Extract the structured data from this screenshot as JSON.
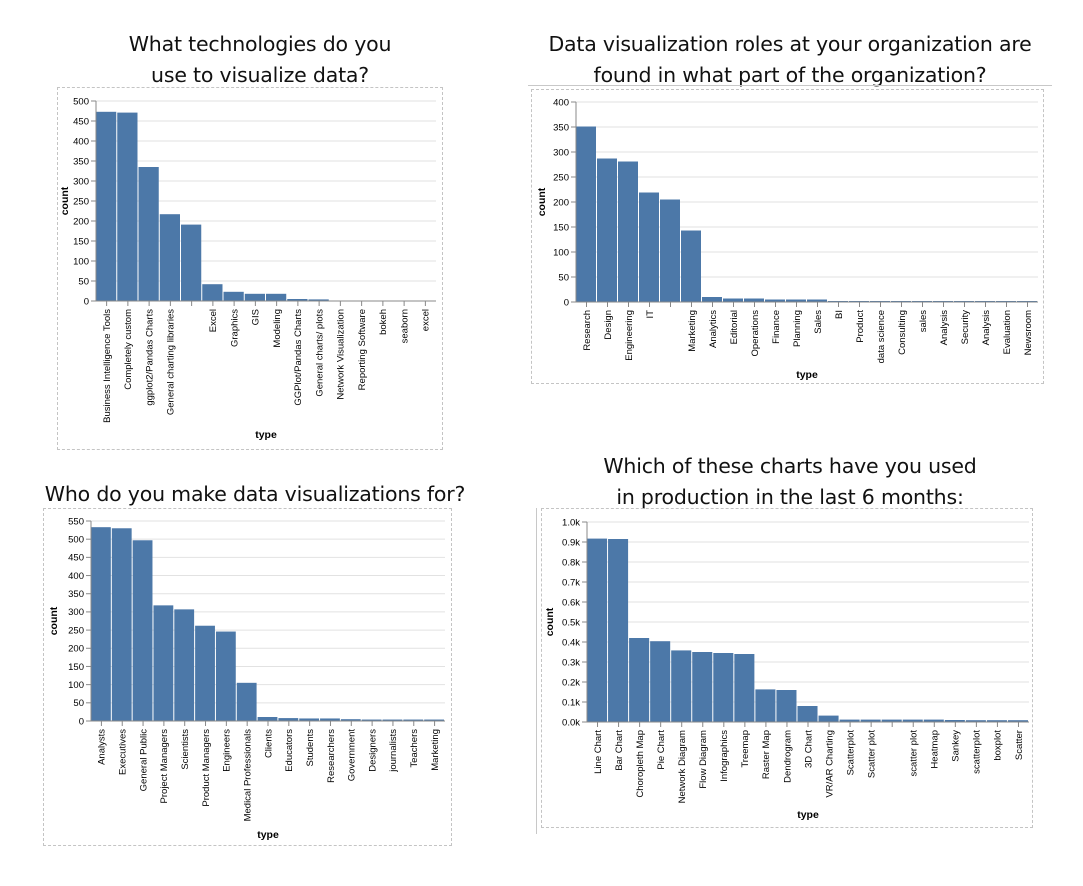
{
  "titles": {
    "c1": [
      "What technologies do you",
      "use to visualize data?"
    ],
    "c2": [
      "Data visualization roles at your organization are",
      "found in what part of the organization?"
    ],
    "c3": [
      "Who do you make data visualizations for?"
    ],
    "c4": [
      "Which of these charts have you used",
      "in production in the last 6 months:"
    ]
  },
  "chart_data": [
    {
      "type": "bar",
      "title": "What technologies do you use to visualize data?",
      "xlabel": "type",
      "ylabel": "count",
      "ylim": [
        0,
        500
      ],
      "yticks": [
        0,
        50,
        100,
        150,
        200,
        250,
        300,
        350,
        400,
        450,
        500
      ],
      "ytick_labels": [
        "0",
        "50",
        "100",
        "150",
        "200",
        "250",
        "300",
        "350",
        "400",
        "450",
        "500"
      ],
      "grid": true,
      "color": "#4c78a8",
      "categories": [
        "Business Intelligence Tools",
        "Completely custom",
        "ggplot2/Pandas Charts",
        "General charting libraries",
        "",
        "Excel",
        "Graphics",
        "GIS",
        "Modeling",
        "GGPlot/Pandas Charts",
        "General charts/ plots",
        "Network Visualization",
        "Reporting Software",
        "bokeh",
        "seaborn",
        "excel"
      ],
      "values": [
        473,
        471,
        335,
        217,
        191,
        42,
        23,
        18,
        18,
        5,
        4,
        1,
        1,
        1,
        1,
        1
      ]
    },
    {
      "type": "bar",
      "title": "Data visualization roles at your organization are found in what part of the organization?",
      "xlabel": "type",
      "ylabel": "count",
      "ylim": [
        0,
        400
      ],
      "yticks": [
        0,
        50,
        100,
        150,
        200,
        250,
        300,
        350,
        400
      ],
      "ytick_labels": [
        "0",
        "50",
        "100",
        "150",
        "200",
        "250",
        "300",
        "350",
        "400"
      ],
      "grid": true,
      "color": "#4c78a8",
      "categories": [
        "Research",
        "Design",
        "Engineering",
        "IT",
        "",
        "Marketing",
        "Analytics",
        "Editorial",
        "Operations",
        "Finance",
        "Planning",
        "Sales",
        "BI",
        "Product",
        "data science",
        "Consulting",
        "sales",
        "Analysis",
        "Security",
        "Analysis",
        "Evaluation",
        "Newsroom"
      ],
      "values": [
        351,
        287,
        281,
        219,
        205,
        143,
        10,
        7,
        7,
        5,
        5,
        5,
        2,
        2,
        2,
        2,
        2,
        2,
        2,
        2,
        2,
        2
      ]
    },
    {
      "type": "bar",
      "title": "Who do you make data visualizations for?",
      "xlabel": "type",
      "ylabel": "count",
      "ylim": [
        0,
        550
      ],
      "yticks": [
        0,
        50,
        100,
        150,
        200,
        250,
        300,
        350,
        400,
        450,
        500,
        550
      ],
      "ytick_labels": [
        "0",
        "50",
        "100",
        "150",
        "200",
        "250",
        "300",
        "350",
        "400",
        "450",
        "500",
        "550"
      ],
      "grid": true,
      "color": "#4c78a8",
      "categories": [
        "Analysts",
        "Executives",
        "General Public",
        "Project Managers",
        "Scientists",
        "Product Managers",
        "Engineers",
        "Medical Professionals",
        "Clients",
        "Educators",
        "Students",
        "Researchers",
        "Government",
        "Designers",
        "journalists",
        "Teachers",
        "Marketing"
      ],
      "values": [
        533,
        530,
        497,
        318,
        307,
        262,
        246,
        105,
        11,
        8,
        7,
        7,
        5,
        4,
        4,
        4,
        4
      ]
    },
    {
      "type": "bar",
      "title": "Which of these charts have you used in production in the last 6 months:",
      "xlabel": "type",
      "ylabel": "count",
      "ylim": [
        0,
        1000
      ],
      "yticks": [
        0,
        100,
        200,
        300,
        400,
        500,
        600,
        700,
        800,
        900,
        1000
      ],
      "ytick_labels": [
        "0.0k",
        "0.1k",
        "0.2k",
        "0.3k",
        "0.4k",
        "0.5k",
        "0.6k",
        "0.7k",
        "0.8k",
        "0.9k",
        "1.0k"
      ],
      "grid": true,
      "color": "#4c78a8",
      "categories": [
        "Line Chart",
        "Bar Chart",
        "Choropleth Map",
        "Pie Chart",
        "Network Diagram",
        "Flow Diagram",
        "Infographics",
        "Treemap",
        "Raster Map",
        "Dendrogram",
        "3D Chart",
        "VR/AR Charting",
        "Scatterplot",
        "Scatter plot",
        "",
        "scatter plot",
        "Heatmap",
        "Sankey",
        "scatterplot",
        "boxplot",
        "Scatter"
      ],
      "values": [
        917,
        915,
        420,
        404,
        358,
        350,
        345,
        340,
        163,
        160,
        80,
        32,
        12,
        12,
        12,
        12,
        12,
        10,
        9,
        9,
        9
      ]
    }
  ]
}
